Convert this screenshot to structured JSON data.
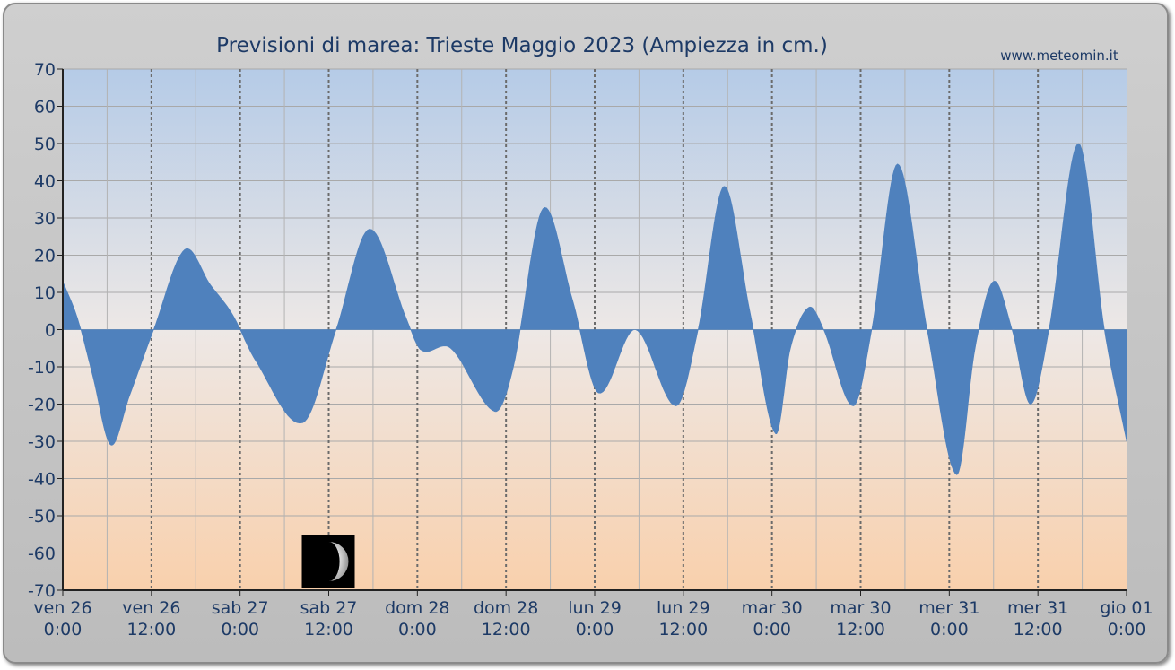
{
  "chart_data": {
    "type": "area",
    "title": "Previsioni di marea: Trieste Maggio 2023 (Ampiezza in cm.)",
    "source": "www.meteomin.it",
    "ylim": [
      -70,
      70
    ],
    "yticks": [
      70,
      60,
      50,
      40,
      30,
      20,
      10,
      0,
      -10,
      -20,
      -30,
      -40,
      -50,
      -60,
      -70
    ],
    "x_range_hours": [
      0,
      144
    ],
    "x_ticks": [
      {
        "day": "ven",
        "date": "26",
        "time": "0:00"
      },
      {
        "day": "ven",
        "date": "26",
        "time": "12:00"
      },
      {
        "day": "sab",
        "date": "27",
        "time": "0:00"
      },
      {
        "day": "sab",
        "date": "27",
        "time": "12:00"
      },
      {
        "day": "dom",
        "date": "28",
        "time": "0:00"
      },
      {
        "day": "dom",
        "date": "28",
        "time": "12:00"
      },
      {
        "day": "lun",
        "date": "29",
        "time": "0:00"
      },
      {
        "day": "lun",
        "date": "29",
        "time": "12:00"
      },
      {
        "day": "mar",
        "date": "30",
        "time": "0:00"
      },
      {
        "day": "mar",
        "date": "30",
        "time": "12:00"
      },
      {
        "day": "mer",
        "date": "31",
        "time": "0:00"
      },
      {
        "day": "mer",
        "date": "31",
        "time": "12:00"
      },
      {
        "day": "gio",
        "date": "01",
        "time": "0:00"
      }
    ],
    "series": [
      {
        "points": [
          [
            0,
            13
          ],
          [
            2,
            3
          ],
          [
            4,
            -12
          ],
          [
            6.5,
            -31
          ],
          [
            9,
            -18
          ],
          [
            12.3,
            0
          ],
          [
            16.5,
            21.5
          ],
          [
            20,
            12
          ],
          [
            23,
            4
          ],
          [
            26,
            -8
          ],
          [
            32.5,
            -25
          ],
          [
            37,
            0
          ],
          [
            41.5,
            27
          ],
          [
            46.5,
            3
          ],
          [
            48.5,
            -5.5
          ],
          [
            52.5,
            -5
          ],
          [
            58.5,
            -22
          ],
          [
            61,
            -10
          ],
          [
            65,
            32.5
          ],
          [
            69,
            8
          ],
          [
            72.5,
            -17
          ],
          [
            77.5,
            0
          ],
          [
            83,
            -20.5
          ],
          [
            86,
            0
          ],
          [
            89.5,
            38.5
          ],
          [
            93,
            5
          ],
          [
            96.5,
            -28
          ],
          [
            98.5,
            -5
          ],
          [
            101,
            6
          ],
          [
            103,
            0
          ],
          [
            107,
            -20.5
          ],
          [
            109.5,
            0
          ],
          [
            113,
            44.5
          ],
          [
            117,
            0
          ],
          [
            121,
            -39
          ],
          [
            123.5,
            -5
          ],
          [
            126,
            13
          ],
          [
            128.5,
            0
          ],
          [
            131,
            -20
          ],
          [
            133.5,
            0
          ],
          [
            137.5,
            50
          ],
          [
            141,
            0
          ],
          [
            144,
            -30
          ]
        ]
      }
    ],
    "moon_phase": {
      "position_hours": 36,
      "icon": "moon-crescent-icon"
    },
    "colors": {
      "fill": "#4f81bd",
      "background_top": "#b7cde8",
      "background_bottom": "#f9d1ae",
      "text": "#1d3a66"
    },
    "grid": true
  }
}
